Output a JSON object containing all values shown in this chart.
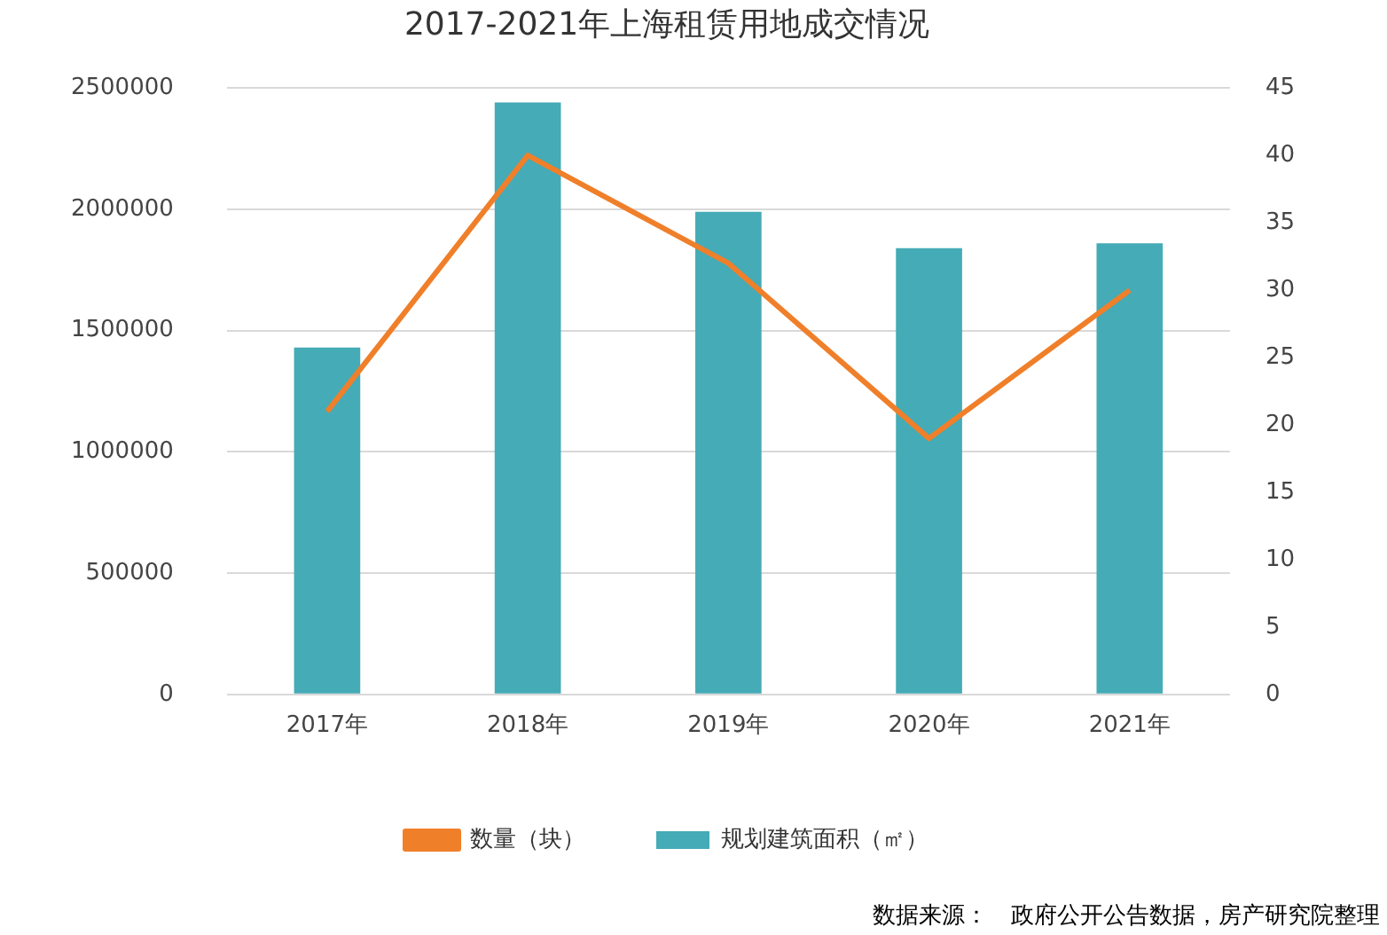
{
  "chart_data": {
    "type": "bar",
    "title": "2017-2021年上海租赁用地成交情况",
    "categories": [
      "2017年",
      "2018年",
      "2019年",
      "2020年",
      "2021年"
    ],
    "series": [
      {
        "name": "规划建筑面积（㎡）",
        "color": "#45abb6",
        "values": [
          1430000,
          2440000,
          1990000,
          1840000,
          1860000
        ]
      },
      {
        "name": "数量（块）",
        "type": "line",
        "axis": "y2",
        "color": "#f07f2a",
        "values": [
          21,
          40,
          32,
          19,
          30
        ]
      }
    ],
    "ylim": [
      0,
      2500000
    ],
    "yticks": [
      0,
      500000,
      1000000,
      1500000,
      2000000,
      2500000
    ],
    "y2lim": [
      0,
      45
    ],
    "y2ticks": [
      0,
      5,
      10,
      15,
      20,
      25,
      30,
      35,
      40,
      45
    ],
    "grid": "y",
    "legend": "bottom",
    "marker": "none",
    "annotations": [
      "数据来源：　政府公开公告数据，房产研究院整理"
    ]
  }
}
